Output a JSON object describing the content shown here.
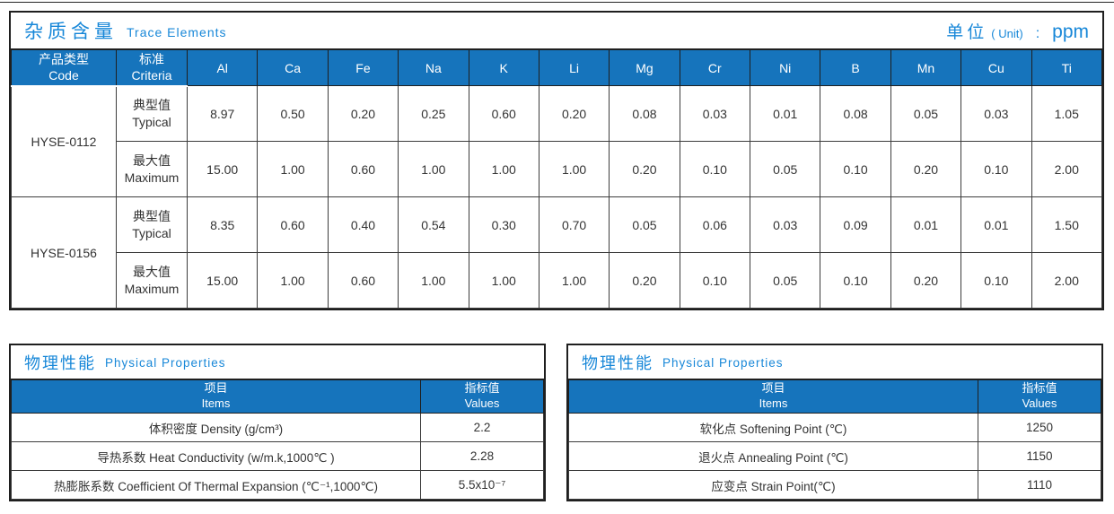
{
  "unit": {
    "label_zh": "单位",
    "label_en": "( Unit)",
    "colon": ":",
    "value": "ppm"
  },
  "trace": {
    "title_zh": "杂质含量",
    "title_en": "Trace Elements",
    "code_header_zh": "产品类型",
    "code_header_en": "Code",
    "criteria_header_zh": "标准",
    "criteria_header_en": "Criteria",
    "row_labels": {
      "typical_zh": "典型值",
      "typical_en": "Typical",
      "maximum_zh": "最大值",
      "maximum_en": "Maximum"
    },
    "elements": [
      "Al",
      "Ca",
      "Fe",
      "Na",
      "K",
      "Li",
      "Mg",
      "Cr",
      "Ni",
      "B",
      "Mn",
      "Cu",
      "Ti"
    ],
    "products": [
      {
        "code": "HYSE-0112",
        "typical": [
          "8.97",
          "0.50",
          "0.20",
          "0.25",
          "0.60",
          "0.20",
          "0.08",
          "0.03",
          "0.01",
          "0.08",
          "0.05",
          "0.03",
          "1.05"
        ],
        "maximum": [
          "15.00",
          "1.00",
          "0.60",
          "1.00",
          "1.00",
          "1.00",
          "0.20",
          "0.10",
          "0.05",
          "0.10",
          "0.20",
          "0.10",
          "2.00"
        ]
      },
      {
        "code": "HYSE-0156",
        "typical": [
          "8.35",
          "0.60",
          "0.40",
          "0.54",
          "0.30",
          "0.70",
          "0.05",
          "0.06",
          "0.03",
          "0.09",
          "0.01",
          "0.01",
          "1.50"
        ],
        "maximum": [
          "15.00",
          "1.00",
          "0.60",
          "1.00",
          "1.00",
          "1.00",
          "0.20",
          "0.10",
          "0.05",
          "0.10",
          "0.20",
          "0.10",
          "2.00"
        ]
      }
    ]
  },
  "phys_labels": {
    "title_zh": "物理性能",
    "title_en": "Physical Properties",
    "items_zh": "项目",
    "items_en": "Items",
    "values_zh": "指标值",
    "values_en": "Values"
  },
  "physical_left": {
    "rows": [
      {
        "item": "体积密度 Density (g/cm³)",
        "value": "2.2"
      },
      {
        "item": "导热系数 Heat Conductivity (w/m.k,1000℃ )",
        "value": "2.28"
      },
      {
        "item": "热膨胀系数 Coefficient Of Thermal Expansion (℃⁻¹,1000℃)",
        "value": "5.5x10⁻⁷"
      }
    ]
  },
  "physical_right": {
    "rows": [
      {
        "item": "软化点 Softening Point (℃)",
        "value": "1250"
      },
      {
        "item": "退火点 Annealing Point (℃)",
        "value": "1150"
      },
      {
        "item": "应变点 Strain Point(℃)",
        "value": "1110"
      }
    ]
  },
  "colors": {
    "header_blue": "#1674bc",
    "title_blue": "#1787d8",
    "border": "#1f1f1f"
  }
}
